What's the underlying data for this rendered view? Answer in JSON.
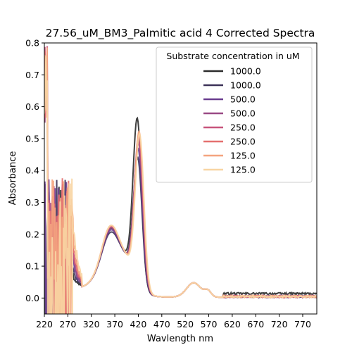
{
  "chart_data": {
    "type": "line",
    "title": "27.56_uM_BM3_Palmitic acid 4 Corrected Spectra",
    "xlabel": "Wavlength nm",
    "ylabel": "Absorbance",
    "xlim": [
      220,
      800
    ],
    "ylim": [
      -0.05,
      0.8
    ],
    "xticks": [
      220,
      270,
      320,
      370,
      420,
      470,
      520,
      570,
      620,
      670,
      720,
      770
    ],
    "yticks": [
      0.0,
      0.1,
      0.2,
      0.3,
      0.4,
      0.5,
      0.6,
      0.7,
      0.8
    ],
    "grid": false,
    "legend": {
      "title": "Substrate concentration in uM",
      "position": "top-right"
    },
    "series": [
      {
        "name": "1000.0",
        "color": "#2b2b2b",
        "peak": 0.59,
        "soret_pos": 418,
        "delta": 0.165,
        "tail": 0.018,
        "noise_end": 262
      },
      {
        "name": "1000.0",
        "color": "#3d3258",
        "peak": 0.47,
        "soret_pos": 419,
        "delta": 0.13,
        "tail": 0.0,
        "noise_end": 266
      },
      {
        "name": "500.0",
        "color": "#6a3d8f",
        "peak": 0.5,
        "soret_pos": 420,
        "delta": 0.15,
        "tail": 0.0,
        "noise_end": 270
      },
      {
        "name": "500.0",
        "color": "#9a4a85",
        "peak": 0.52,
        "soret_pos": 421,
        "delta": 0.168,
        "tail": 0.0,
        "noise_end": 272
      },
      {
        "name": "250.0",
        "color": "#c8557d",
        "peak": 0.54,
        "soret_pos": 421,
        "delta": 0.178,
        "tail": 0.0,
        "noise_end": 274
      },
      {
        "name": "250.0",
        "color": "#e4706f",
        "peak": 0.55,
        "soret_pos": 422,
        "delta": 0.185,
        "tail": 0.0,
        "noise_end": 276
      },
      {
        "name": "125.0",
        "color": "#f4a47f",
        "peak": 0.56,
        "soret_pos": 422,
        "delta": 0.19,
        "tail": 0.0,
        "noise_end": 278
      },
      {
        "name": "125.0",
        "color": "#f8d5a3",
        "peak": 0.555,
        "soret_pos": 423,
        "delta": 0.19,
        "tail": 0.0,
        "noise_end": 280
      }
    ]
  }
}
